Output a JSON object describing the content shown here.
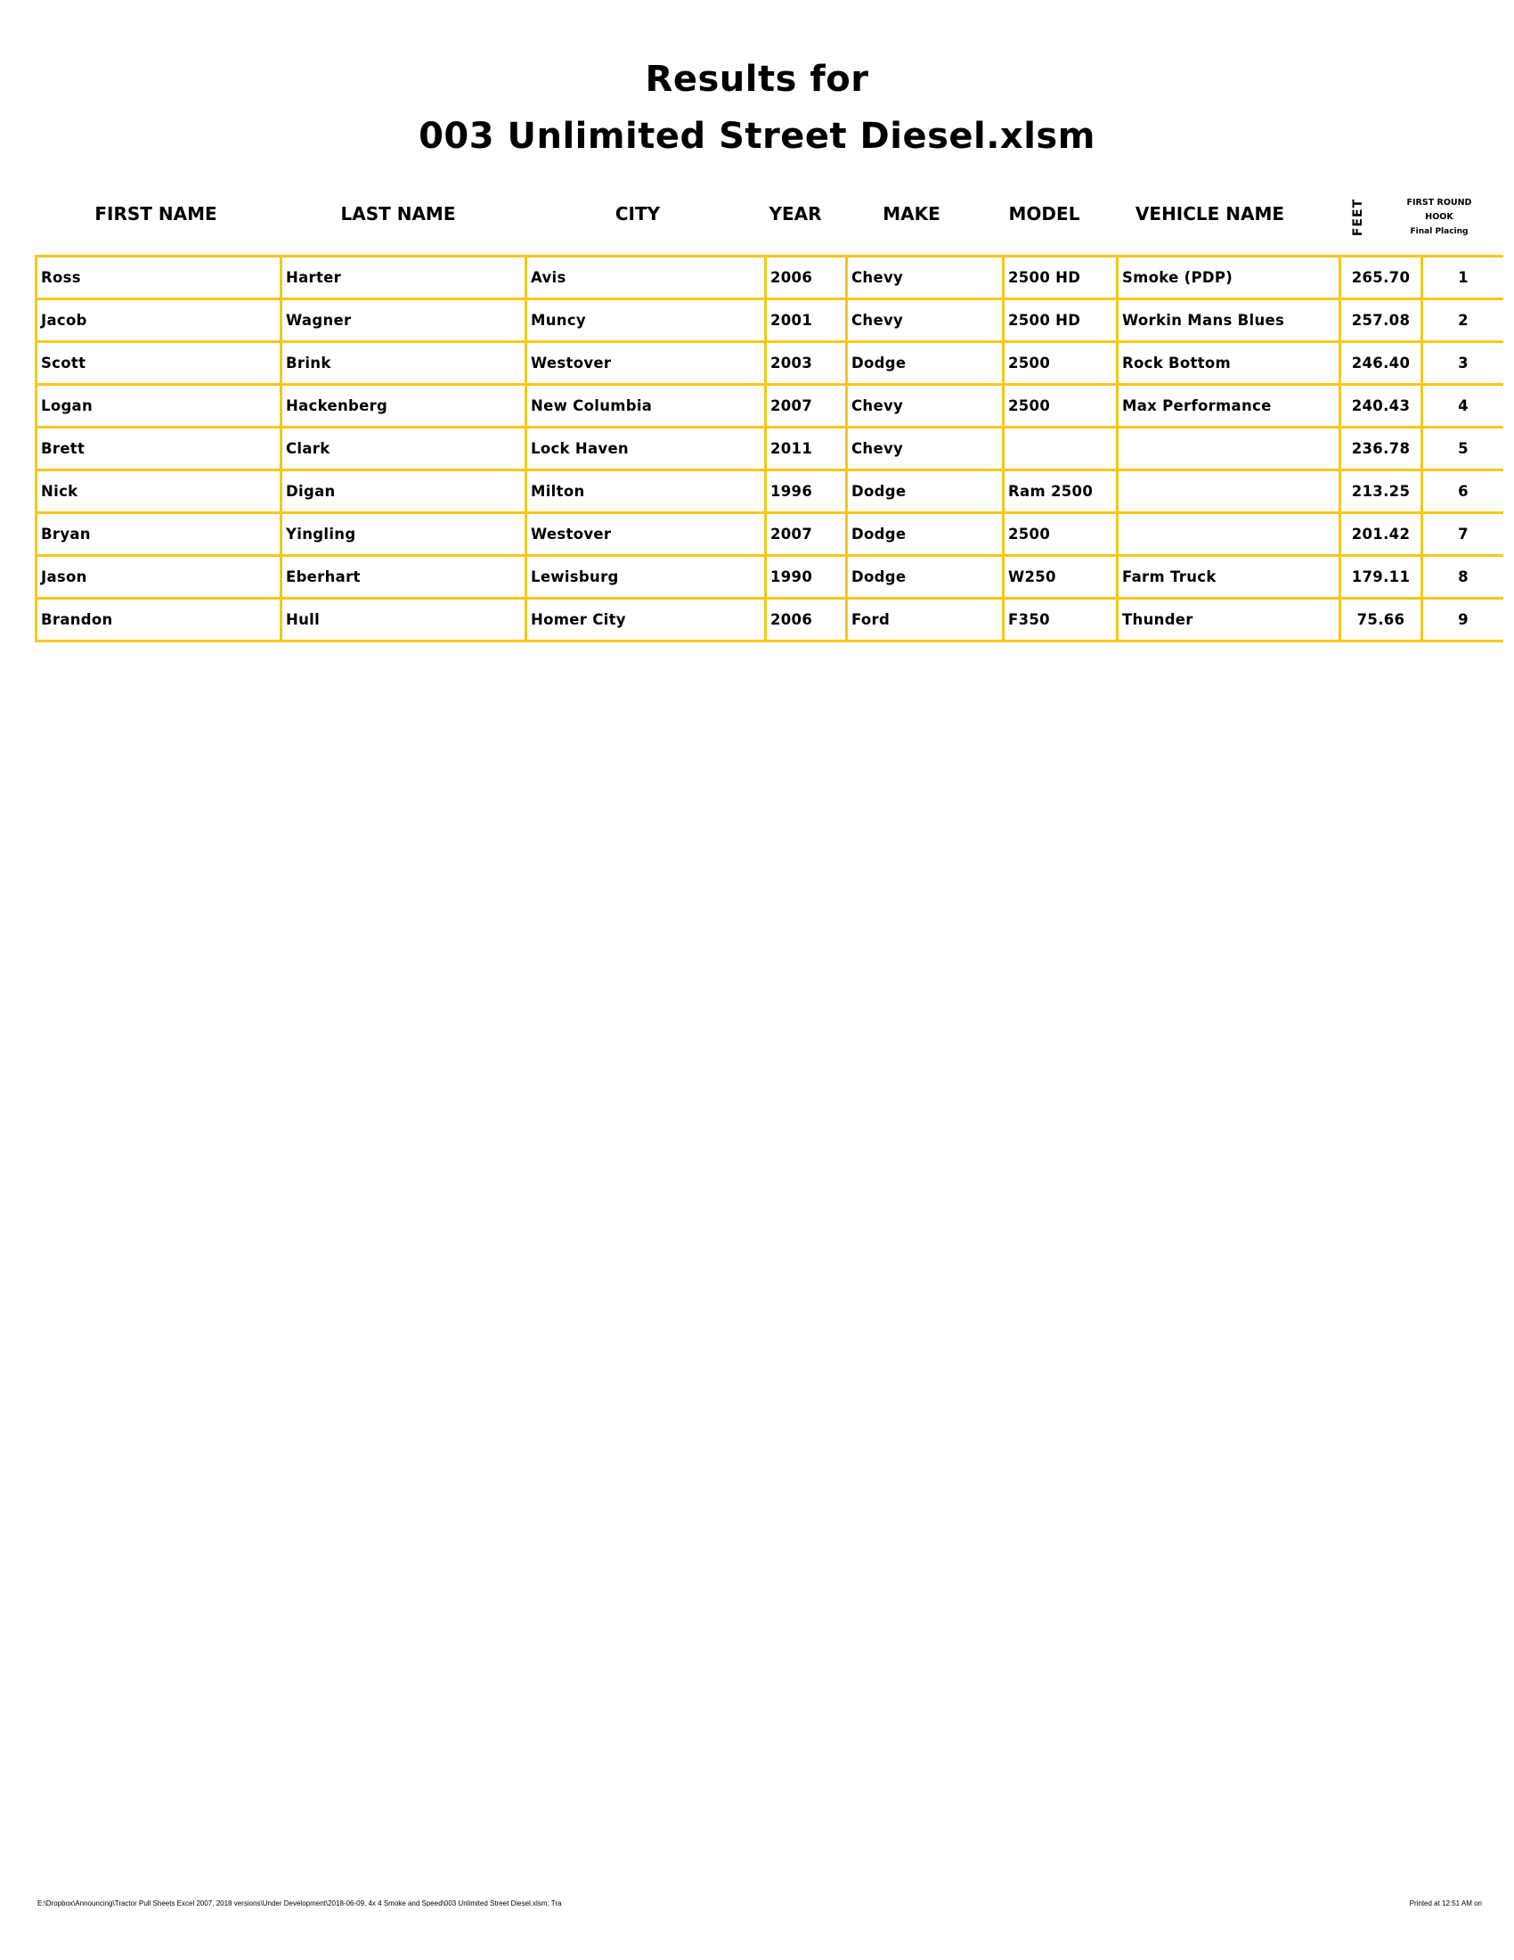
{
  "title": {
    "line1": "Results for",
    "line2": "003 Unlimited Street Diesel.xlsm"
  },
  "border_color": "#F7C719",
  "columns": [
    "FIRST NAME",
    "LAST NAME",
    "CITY",
    "YEAR",
    "MAKE",
    "MODEL",
    "VEHICLE NAME",
    "FEET"
  ],
  "hook_header": {
    "line1": "FIRST ROUND",
    "line2": "HOOK",
    "line3": "Final Placing"
  },
  "rows": [
    [
      "Ross",
      "Harter",
      "Avis",
      "2006",
      "Chevy",
      "2500 HD",
      "Smoke (PDP)",
      "265.70",
      "1"
    ],
    [
      "Jacob",
      "Wagner",
      "Muncy",
      "2001",
      "Chevy",
      "2500 HD",
      "Workin Mans Blues",
      "257.08",
      "2"
    ],
    [
      "Scott",
      "Brink",
      "Westover",
      "2003",
      "Dodge",
      "2500",
      "Rock Bottom",
      "246.40",
      "3"
    ],
    [
      "Logan",
      "Hackenberg",
      "New Columbia",
      "2007",
      "Chevy",
      "2500",
      "Max Performance",
      "240.43",
      "4"
    ],
    [
      "Brett",
      "Clark",
      "Lock Haven",
      "2011",
      "Chevy",
      "",
      "",
      "236.78",
      "5"
    ],
    [
      "Nick",
      "Digan",
      "Milton",
      "1996",
      "Dodge",
      "Ram 2500",
      "",
      "213.25",
      "6"
    ],
    [
      "Bryan",
      "Yingling",
      "Westover",
      "2007",
      "Dodge",
      "2500",
      "",
      "201.42",
      "7"
    ],
    [
      "Jason",
      "Eberhart",
      "Lewisburg",
      "1990",
      "Dodge",
      "W250",
      "Farm Truck",
      "179.11",
      "8"
    ],
    [
      "Brandon",
      "Hull",
      "Homer City",
      "2006",
      "Ford",
      "F350",
      "Thunder",
      "75.66",
      "9"
    ]
  ],
  "footer": {
    "path": "E:\\Dropbox\\Announcing\\Tractor Pull Sheets Excel 2007, 2018 versions\\Under Development\\2018-06-09, 4x 4 Smoke and Speed\\003 Unlimited Street Diesel.xlsm; Tra",
    "printed": "Printed at 12:51 AM on"
  }
}
